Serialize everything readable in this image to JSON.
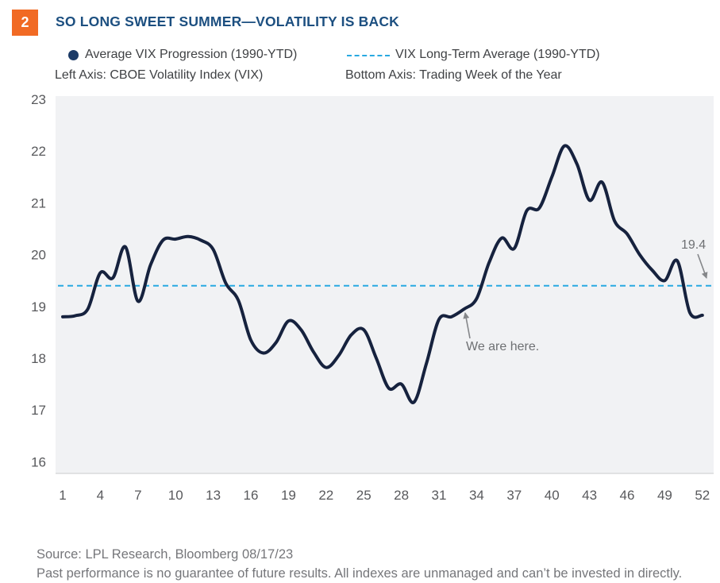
{
  "figure_number": "2",
  "title": "SO LONG SWEET SUMMER—VOLATILITY IS BACK",
  "legend": {
    "series1_label": "Average VIX Progression (1990-YTD)",
    "series2_label": "VIX Long-Term Average (1990-YTD)",
    "left_axis_note": "Left Axis: CBOE Volatility Index (VIX)",
    "bottom_axis_note": "Bottom Axis: Trading Week of the Year"
  },
  "annotations": {
    "we_are_here": "We are here.",
    "avg_value_label": "19.4"
  },
  "footer": {
    "source": "Source: LPL Research, Bloomberg 08/17/23",
    "disclaimer": "Past performance is no guarantee of future results. All indexes are unmanaged and can’t be invested in directly."
  },
  "colors": {
    "accent_orange": "#F16A24",
    "title_navy": "#1C4F80",
    "line_navy": "#16223E",
    "average_blue": "#29A9E1",
    "panel_bg": "#F1F2F4",
    "panel_edge": "#D9DADC",
    "axis_text": "#58595C",
    "annotation_gray": "#85878A"
  },
  "chart_data": {
    "type": "line",
    "title": "SO LONG SWEET SUMMER—VOLATILITY IS BACK",
    "xlabel": "Trading Week of the Year",
    "ylabel": "CBOE Volatility Index (VIX)",
    "xlim": [
      1,
      52
    ],
    "ylim": [
      16,
      23
    ],
    "grid": false,
    "legend_position": "top",
    "xticks": [
      1,
      4,
      7,
      10,
      13,
      16,
      19,
      22,
      25,
      28,
      31,
      34,
      37,
      40,
      43,
      46,
      49,
      52
    ],
    "yticks": [
      16,
      17,
      18,
      19,
      20,
      21,
      22,
      23
    ],
    "x": [
      1,
      2,
      3,
      4,
      5,
      6,
      7,
      8,
      9,
      10,
      11,
      12,
      13,
      14,
      15,
      16,
      17,
      18,
      19,
      20,
      21,
      22,
      23,
      24,
      25,
      26,
      27,
      28,
      29,
      30,
      31,
      32,
      33,
      34,
      35,
      36,
      37,
      38,
      39,
      40,
      41,
      42,
      43,
      44,
      45,
      46,
      47,
      48,
      49,
      50,
      51,
      52
    ],
    "series": [
      {
        "name": "Average VIX Progression (1990-YTD)",
        "style": "solid",
        "values": [
          18.8,
          18.82,
          18.95,
          19.65,
          19.55,
          20.15,
          19.1,
          19.8,
          20.28,
          20.3,
          20.35,
          20.28,
          20.1,
          19.45,
          19.12,
          18.35,
          18.1,
          18.3,
          18.72,
          18.55,
          18.12,
          17.82,
          18.05,
          18.45,
          18.55,
          18.0,
          17.42,
          17.5,
          17.15,
          17.9,
          18.75,
          18.8,
          18.95,
          19.15,
          19.85,
          20.32,
          20.12,
          20.85,
          20.9,
          21.5,
          22.1,
          21.75,
          21.05,
          21.4,
          20.65,
          20.4,
          20.0,
          19.7,
          19.5,
          19.88,
          18.88,
          18.83
        ]
      },
      {
        "name": "VIX Long-Term Average (1990-YTD)",
        "style": "dashed",
        "constant_value": 19.4
      }
    ],
    "annotations": [
      {
        "text": "We are here.",
        "points_to_week": 33
      },
      {
        "text": "19.4",
        "points_to": "long-term average line at right edge"
      }
    ]
  }
}
